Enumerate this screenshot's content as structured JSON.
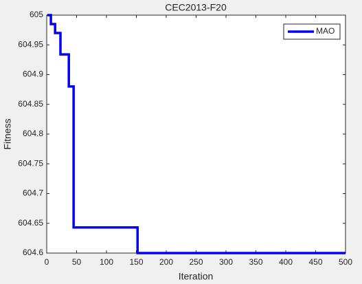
{
  "chart_data": {
    "type": "line",
    "title": "CEC2013-F20",
    "x_label": "Iteration",
    "y_label": "Fitness",
    "x": [
      1,
      7,
      7,
      14,
      14,
      23,
      23,
      37,
      37,
      45,
      45,
      152,
      152,
      500
    ],
    "series": [
      {
        "name": "MAO",
        "color": "#0000ff",
        "values": [
          605,
          605,
          604.985,
          604.985,
          604.97,
          604.97,
          604.934,
          604.934,
          604.88,
          604.88,
          604.643,
          604.643,
          604.6,
          604.6
        ]
      }
    ],
    "xlim": [
      0,
      500
    ],
    "xticks": [
      0,
      50,
      100,
      150,
      200,
      250,
      300,
      350,
      400,
      450,
      500
    ],
    "ylim": [
      604.6,
      605
    ],
    "yticks": [
      604.6,
      604.65,
      604.7,
      604.75,
      604.8,
      604.85,
      604.9,
      604.95,
      605
    ],
    "legend": "upper-right"
  }
}
